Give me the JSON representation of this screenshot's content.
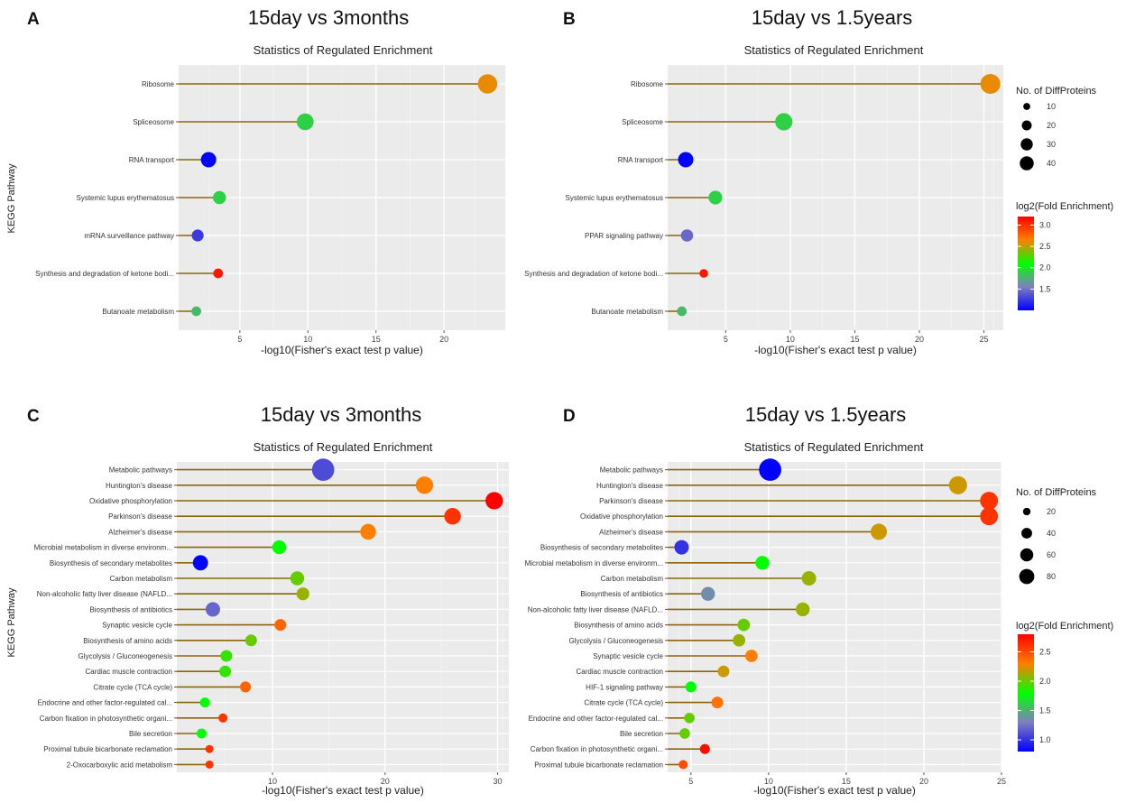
{
  "figure": {
    "colorbar_colors": [
      "#0000ff",
      "#7f7fbf",
      "#00ff00",
      "#ff7f00",
      "#ff0000"
    ]
  },
  "chart_data": [
    {
      "type": "scatter",
      "panel_letter": "A",
      "heading": "15day vs 3months",
      "title": "Statistics of Regulated Enrichment",
      "xlabel": "-log10(Fisher's exact test p value)",
      "ylabel": "KEGG Pathway",
      "xlim": [
        0.5,
        24.5
      ],
      "xticks": [
        5,
        10,
        15,
        20
      ],
      "categories": [
        "Ribosome",
        "Spliceosome",
        "RNA transport",
        "Systemic lupus erythematosus",
        "mRNA surveillance pathway",
        "Synthesis and degradation of ketone bodi...",
        "Butanoate metabolism"
      ],
      "x": [
        23.2,
        9.8,
        2.7,
        3.5,
        1.9,
        3.4,
        1.8
      ],
      "color_values": [
        2.6,
        1.9,
        1.0,
        1.9,
        1.25,
        3.1,
        1.8
      ],
      "size_values": [
        40,
        30,
        25,
        18,
        15,
        10,
        10
      ],
      "size_range": [
        10,
        40
      ],
      "color_range": [
        1.0,
        3.2
      ]
    },
    {
      "type": "scatter",
      "panel_letter": "B",
      "heading": "15day vs 1.5years",
      "title": "Statistics of Regulated Enrichment",
      "xlabel": "-log10(Fisher's exact test p value)",
      "ylabel": "",
      "xlim": [
        0.5,
        26.5
      ],
      "xticks": [
        5,
        10,
        15,
        20,
        25
      ],
      "categories": [
        "Ribosome",
        "Spliceosome",
        "RNA transport",
        "Systemic lupus erythematosus",
        "PPAR signaling pathway",
        "Synthesis and degradation of ketone bodi...",
        "Butanoate metabolism"
      ],
      "x": [
        25.5,
        9.5,
        1.9,
        4.2,
        2.0,
        3.3,
        1.6
      ],
      "color_values": [
        2.6,
        1.9,
        1.0,
        1.9,
        1.45,
        3.1,
        1.8
      ],
      "size_values": [
        42,
        32,
        25,
        20,
        16,
        8,
        10
      ],
      "size_range": [
        10,
        40
      ],
      "color_range": [
        1.0,
        3.2
      ],
      "legend": {
        "size_title": "No. of DiffProteins",
        "size_breaks": [
          10,
          20,
          30,
          40
        ],
        "color_title": "log2(Fold Enrichment)",
        "color_breaks": [
          1.5,
          2.0,
          2.5,
          3.0
        ]
      }
    },
    {
      "type": "scatter",
      "panel_letter": "C",
      "heading": "15day vs 3months",
      "title": "Statistics of Regulated Enrichment",
      "xlabel": "-log10(Fisher's exact test p value)",
      "ylabel": "KEGG Pathway",
      "xlim": [
        1.5,
        31
      ],
      "xticks": [
        10,
        20,
        30
      ],
      "categories": [
        "Metabolic pathways",
        "Huntington's disease",
        "Oxidative phosphorylation",
        "Parkinson's disease",
        "Alzheimer's disease",
        "Microbial metabolism in diverse environm...",
        "Biosynthesis of secondary metabolites",
        "Carbon metabolism",
        "Non-alcoholic fatty liver disease (NAFLD...",
        "Biosynthesis of antibiotics",
        "Synaptic vesicle cycle",
        "Biosynthesis of amino acids",
        "Glycolysis / Gluconeogenesis",
        "Cardiac muscle contraction",
        "Citrate cycle (TCA cycle)",
        "Endocrine and other factor-regulated cal...",
        "Carbon fixation in photosynthetic organi...",
        "Bile secretion",
        "Proximal tubule bicarbonate reclamation",
        "2-Oxocarboxylic acid metabolism"
      ],
      "x": [
        14.5,
        23.5,
        29.7,
        26.0,
        18.5,
        10.6,
        3.6,
        12.2,
        12.7,
        4.7,
        10.7,
        8.1,
        5.9,
        5.8,
        7.6,
        4.0,
        5.6,
        3.7,
        4.4,
        4.4
      ],
      "color_values": [
        1.1,
        2.3,
        2.8,
        2.6,
        2.3,
        1.8,
        0.8,
        2.0,
        2.1,
        1.2,
        2.4,
        2.0,
        1.9,
        1.9,
        2.4,
        1.8,
        2.6,
        1.8,
        2.6,
        2.6
      ],
      "size_values": [
        90,
        55,
        55,
        50,
        45,
        35,
        42,
        35,
        30,
        38,
        25,
        25,
        25,
        25,
        22,
        18,
        15,
        18,
        12,
        12
      ],
      "size_range": [
        12,
        90
      ],
      "color_range": [
        0.8,
        2.8
      ]
    },
    {
      "type": "scatter",
      "panel_letter": "D",
      "heading": "15day vs 1.5years",
      "title": "Statistics of Regulated Enrichment",
      "xlabel": "-log10(Fisher's exact test p value)",
      "ylabel": "",
      "xlim": [
        3.5,
        25
      ],
      "xticks": [
        5,
        10,
        15,
        20,
        25
      ],
      "categories": [
        "Metabolic pathways",
        "Huntington's disease",
        "Parkinson's disease",
        "Oxidative phosphorylation",
        "Alzheimer's disease",
        "Biosynthesis of secondary metabolites",
        "Microbial metabolism in diverse environm...",
        "Carbon metabolism",
        "Biosynthesis of antibiotics",
        "Non-alcoholic fatty liver disease (NAFLD...",
        "Biosynthesis of amino acids",
        "Glycolysis / Gluconeogenesis",
        "Synaptic vesicle cycle",
        "Cardiac muscle contraction",
        "HIF-1 signaling pathway",
        "Citrate cycle (TCA cycle)",
        "Endocrine and other factor-regulated cal...",
        "Bile secretion",
        "Carbon fixation in photosynthetic organi...",
        "Proximal tubule bicarbonate reclamation"
      ],
      "x": [
        10.1,
        22.2,
        24.2,
        24.2,
        17.1,
        4.4,
        9.6,
        12.6,
        6.1,
        12.2,
        8.4,
        8.1,
        8.9,
        7.1,
        5.0,
        6.7,
        4.9,
        4.6,
        5.9,
        4.5
      ],
      "color_values": [
        0.8,
        2.2,
        2.6,
        2.6,
        2.2,
        1.0,
        1.8,
        2.1,
        1.35,
        2.1,
        2.0,
        2.1,
        2.3,
        2.2,
        1.8,
        2.35,
        2.0,
        2.0,
        2.75,
        2.5
      ],
      "size_values": [
        90,
        60,
        58,
        58,
        48,
        38,
        35,
        38,
        35,
        35,
        28,
        28,
        28,
        25,
        22,
        25,
        20,
        20,
        18,
        15
      ],
      "size_range": [
        12,
        90
      ],
      "color_range": [
        0.8,
        2.8
      ],
      "legend": {
        "size_title": "No. of DiffProteins",
        "size_breaks": [
          20,
          40,
          60,
          80
        ],
        "color_title": "log2(Fold Enrichment)",
        "color_breaks": [
          1.0,
          1.5,
          2.0,
          2.5
        ]
      }
    }
  ]
}
